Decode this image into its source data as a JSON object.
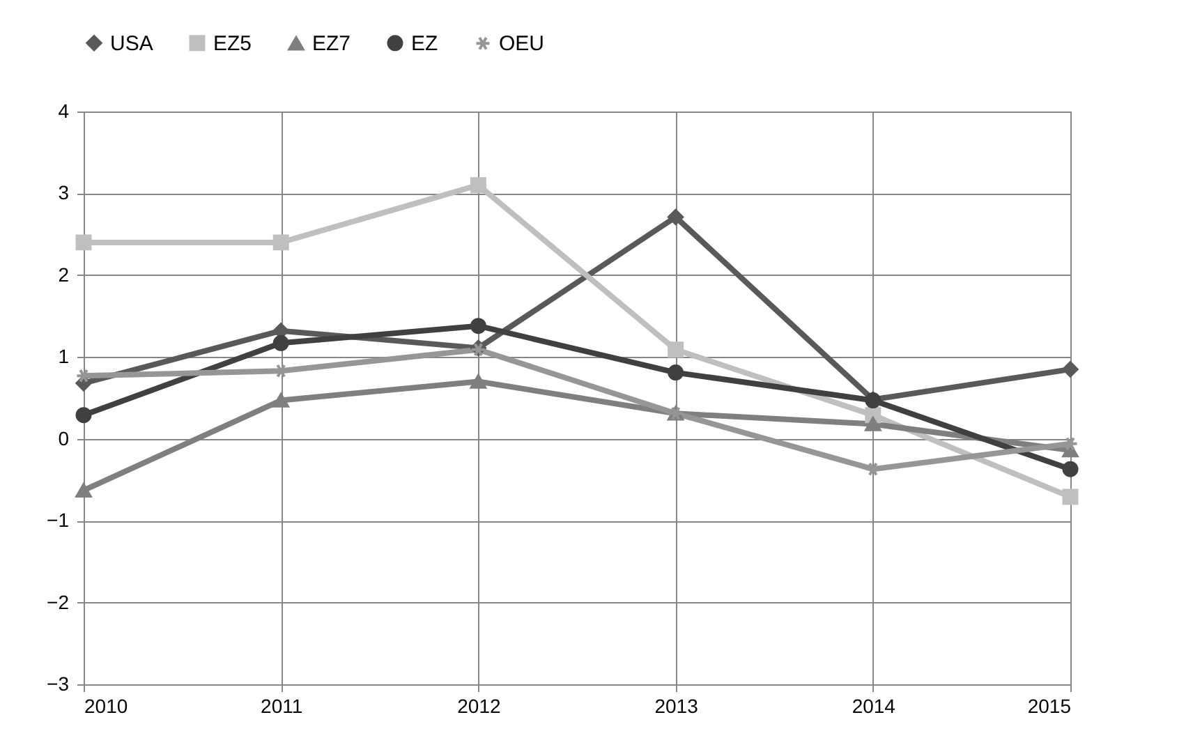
{
  "chart_data": {
    "type": "line",
    "categories": [
      "2010",
      "2011",
      "2012",
      "2013",
      "2014",
      "2015"
    ],
    "ylim": [
      -3,
      4
    ],
    "yticks": [
      -3,
      -2,
      -1,
      0,
      1,
      2,
      3,
      4
    ],
    "grid": true,
    "legend": "top",
    "series": [
      {
        "name": "USA",
        "color": "#595959",
        "marker": "diamond",
        "values": [
          0.68,
          1.32,
          1.11,
          2.71,
          0.48,
          0.85
        ]
      },
      {
        "name": "EZ5",
        "color": "#bfbfbf",
        "marker": "square",
        "values": [
          2.4,
          2.4,
          3.1,
          1.09,
          0.29,
          -0.71
        ]
      },
      {
        "name": "EZ7",
        "color": "#7f7f7f",
        "marker": "triangle",
        "values": [
          -0.63,
          0.47,
          0.7,
          0.31,
          0.18,
          -0.14
        ]
      },
      {
        "name": "EZ",
        "color": "#404040",
        "marker": "circle",
        "values": [
          0.29,
          1.17,
          1.38,
          0.81,
          0.47,
          -0.37
        ]
      },
      {
        "name": "OEU",
        "color": "#969696",
        "marker": "cross",
        "values": [
          0.77,
          0.83,
          1.09,
          0.31,
          -0.37,
          -0.06
        ]
      }
    ]
  }
}
